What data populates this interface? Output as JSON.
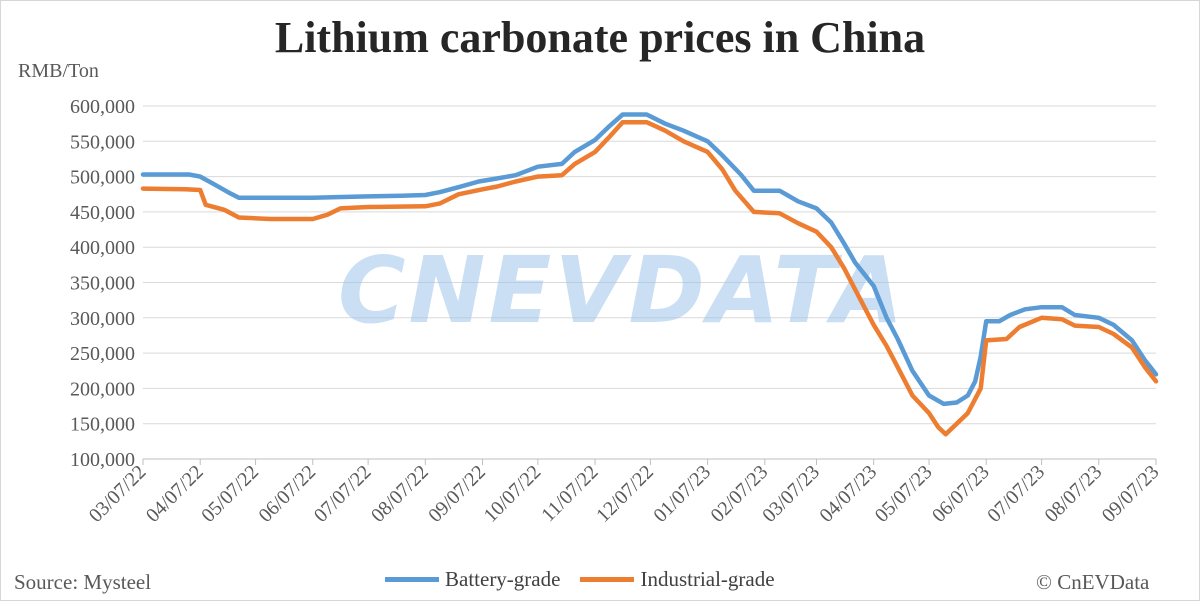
{
  "chart_data": {
    "type": "line",
    "title": "Lithium carbonate prices in China",
    "ylabel": "RMB/Ton",
    "source": "Source: Mysteel",
    "copyright": "© CnEVData",
    "watermark": "CNEVDATA",
    "ylim": [
      100000,
      600000
    ],
    "yticks": [
      "600,000",
      "550,000",
      "500,000",
      "450,000",
      "400,000",
      "350,000",
      "300,000",
      "250,000",
      "200,000",
      "150,000",
      "100,000"
    ],
    "xlim": [
      "2022-03-07",
      "2023-09-07"
    ],
    "xticks": [
      "03/07/22",
      "04/07/22",
      "05/07/22",
      "06/07/22",
      "07/07/22",
      "08/07/22",
      "09/07/22",
      "10/07/22",
      "11/07/22",
      "12/07/22",
      "01/07/23",
      "02/07/23",
      "03/07/23",
      "04/07/23",
      "05/07/23",
      "06/07/23",
      "07/07/23",
      "08/07/23",
      "09/07/23"
    ],
    "grid": true,
    "legend_position": "bottom",
    "series": [
      {
        "name": "Battery-grade",
        "color": "#5b9bd5",
        "points": [
          [
            "2022-03-07",
            503000
          ],
          [
            "2022-04-01",
            503000
          ],
          [
            "2022-04-07",
            500000
          ],
          [
            "2022-04-14",
            490000
          ],
          [
            "2022-04-22",
            478000
          ],
          [
            "2022-04-28",
            470000
          ],
          [
            "2022-05-15",
            470000
          ],
          [
            "2022-06-07",
            470000
          ],
          [
            "2022-06-20",
            471000
          ],
          [
            "2022-07-07",
            472000
          ],
          [
            "2022-07-25",
            473000
          ],
          [
            "2022-08-07",
            474000
          ],
          [
            "2022-08-15",
            478000
          ],
          [
            "2022-08-25",
            485000
          ],
          [
            "2022-09-05",
            493000
          ],
          [
            "2022-09-12",
            496000
          ],
          [
            "2022-09-25",
            502000
          ],
          [
            "2022-10-07",
            514000
          ],
          [
            "2022-10-20",
            518000
          ],
          [
            "2022-10-27",
            535000
          ],
          [
            "2022-11-07",
            552000
          ],
          [
            "2022-11-15",
            572000
          ],
          [
            "2022-11-22",
            588000
          ],
          [
            "2022-12-05",
            588000
          ],
          [
            "2022-12-15",
            575000
          ],
          [
            "2022-12-25",
            565000
          ],
          [
            "2023-01-07",
            550000
          ],
          [
            "2023-01-15",
            530000
          ],
          [
            "2023-01-25",
            503000
          ],
          [
            "2023-02-01",
            480000
          ],
          [
            "2023-02-15",
            480000
          ],
          [
            "2023-02-25",
            465000
          ],
          [
            "2023-03-07",
            455000
          ],
          [
            "2023-03-15",
            435000
          ],
          [
            "2023-03-22",
            405000
          ],
          [
            "2023-03-28",
            378000
          ],
          [
            "2023-04-07",
            345000
          ],
          [
            "2023-04-14",
            300000
          ],
          [
            "2023-04-20",
            270000
          ],
          [
            "2023-04-28",
            225000
          ],
          [
            "2023-05-07",
            190000
          ],
          [
            "2023-05-15",
            178000
          ],
          [
            "2023-05-22",
            180000
          ],
          [
            "2023-05-28",
            190000
          ],
          [
            "2023-06-01",
            210000
          ],
          [
            "2023-06-04",
            245000
          ],
          [
            "2023-06-07",
            295000
          ],
          [
            "2023-06-14",
            295000
          ],
          [
            "2023-06-20",
            304000
          ],
          [
            "2023-06-28",
            312000
          ],
          [
            "2023-07-07",
            315000
          ],
          [
            "2023-07-18",
            315000
          ],
          [
            "2023-07-25",
            304000
          ],
          [
            "2023-08-07",
            300000
          ],
          [
            "2023-08-15",
            290000
          ],
          [
            "2023-08-25",
            268000
          ],
          [
            "2023-09-01",
            240000
          ],
          [
            "2023-09-07",
            220000
          ]
        ]
      },
      {
        "name": "Industrial-grade",
        "color": "#ed7d31",
        "points": [
          [
            "2022-03-07",
            483000
          ],
          [
            "2022-03-30",
            482000
          ],
          [
            "2022-04-07",
            481000
          ],
          [
            "2022-04-10",
            460000
          ],
          [
            "2022-04-20",
            453000
          ],
          [
            "2022-04-28",
            442000
          ],
          [
            "2022-05-15",
            440000
          ],
          [
            "2022-06-07",
            440000
          ],
          [
            "2022-06-15",
            446000
          ],
          [
            "2022-06-22",
            455000
          ],
          [
            "2022-07-07",
            457000
          ],
          [
            "2022-08-07",
            458000
          ],
          [
            "2022-08-15",
            462000
          ],
          [
            "2022-08-25",
            475000
          ],
          [
            "2022-09-07",
            482000
          ],
          [
            "2022-09-15",
            486000
          ],
          [
            "2022-09-25",
            493000
          ],
          [
            "2022-10-07",
            500000
          ],
          [
            "2022-10-20",
            502000
          ],
          [
            "2022-10-27",
            518000
          ],
          [
            "2022-11-07",
            535000
          ],
          [
            "2022-11-15",
            557000
          ],
          [
            "2022-11-22",
            577000
          ],
          [
            "2022-12-05",
            577000
          ],
          [
            "2022-12-15",
            565000
          ],
          [
            "2022-12-25",
            550000
          ],
          [
            "2023-01-07",
            535000
          ],
          [
            "2023-01-15",
            510000
          ],
          [
            "2023-01-22",
            480000
          ],
          [
            "2023-02-01",
            450000
          ],
          [
            "2023-02-15",
            448000
          ],
          [
            "2023-02-25",
            434000
          ],
          [
            "2023-03-07",
            422000
          ],
          [
            "2023-03-15",
            400000
          ],
          [
            "2023-03-22",
            370000
          ],
          [
            "2023-03-28",
            340000
          ],
          [
            "2023-04-07",
            290000
          ],
          [
            "2023-04-14",
            260000
          ],
          [
            "2023-04-20",
            230000
          ],
          [
            "2023-04-28",
            190000
          ],
          [
            "2023-05-07",
            165000
          ],
          [
            "2023-05-12",
            145000
          ],
          [
            "2023-05-16",
            135000
          ],
          [
            "2023-05-22",
            150000
          ],
          [
            "2023-05-28",
            165000
          ],
          [
            "2023-06-04",
            200000
          ],
          [
            "2023-06-07",
            268000
          ],
          [
            "2023-06-18",
            270000
          ],
          [
            "2023-06-25",
            287000
          ],
          [
            "2023-07-07",
            300000
          ],
          [
            "2023-07-18",
            298000
          ],
          [
            "2023-07-25",
            289000
          ],
          [
            "2023-08-07",
            287000
          ],
          [
            "2023-08-15",
            277000
          ],
          [
            "2023-08-25",
            258000
          ],
          [
            "2023-09-01",
            230000
          ],
          [
            "2023-09-07",
            210000
          ]
        ]
      }
    ]
  }
}
